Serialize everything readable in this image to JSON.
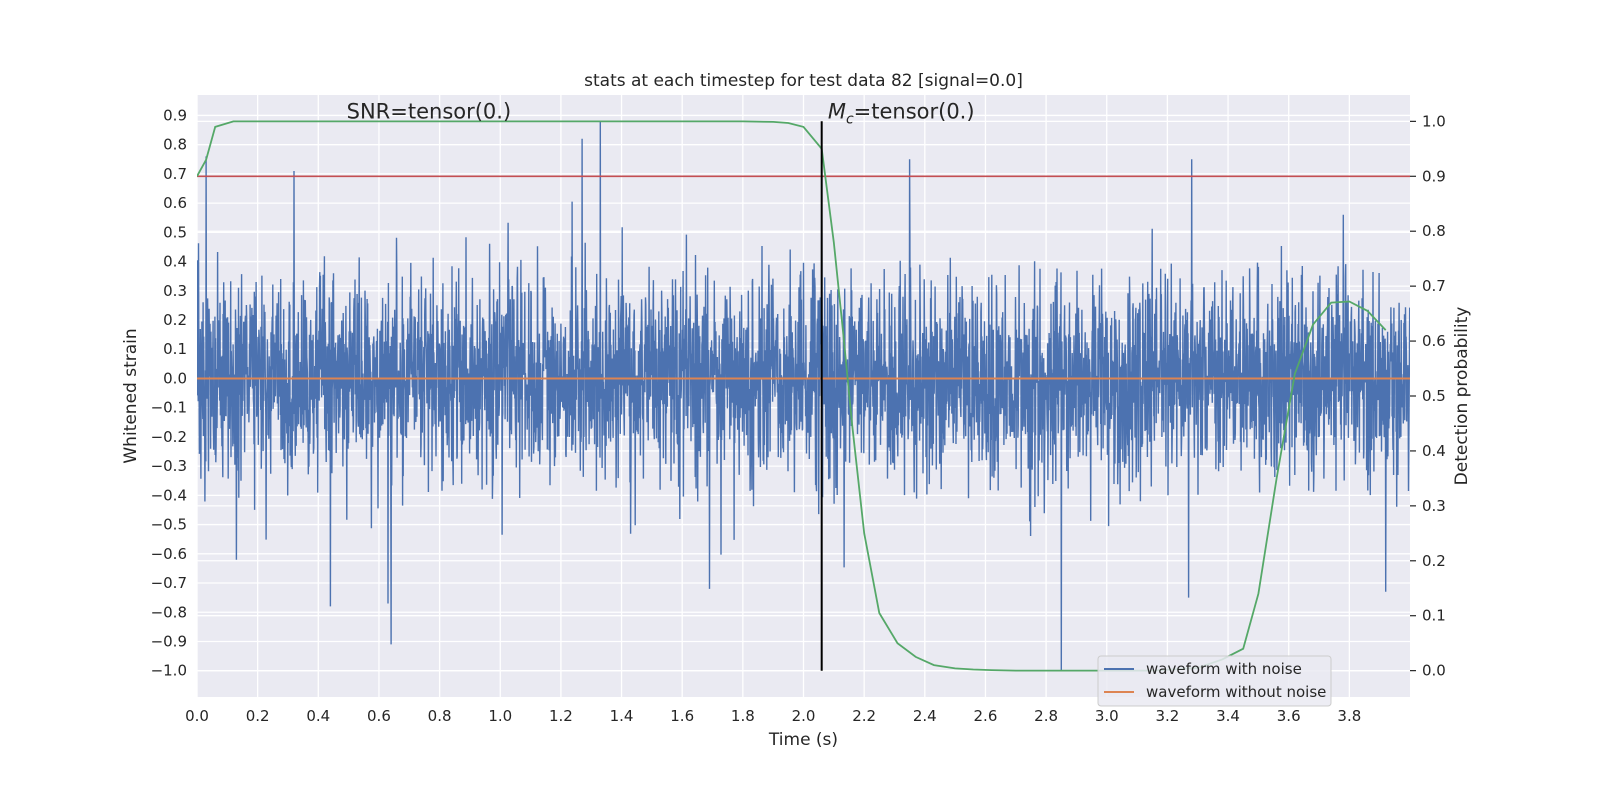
{
  "chart_data": {
    "type": "line",
    "title": "stats at each timestep for test data 82 [signal=0.0]",
    "xlabel": "Time (s)",
    "ylabel": "Whitened strain",
    "y2label": "Detection probability",
    "xlim": [
      0.0,
      4.0
    ],
    "ylim": [
      -1.09,
      0.97
    ],
    "y2lim": [
      -0.048,
      1.048
    ],
    "x_ticks": [
      "0.0",
      "0.2",
      "0.4",
      "0.6",
      "0.8",
      "1.0",
      "1.2",
      "1.4",
      "1.6",
      "1.8",
      "2.0",
      "2.2",
      "2.4",
      "2.6",
      "2.8",
      "3.0",
      "3.2",
      "3.4",
      "3.6",
      "3.8"
    ],
    "y_ticks": [
      "0.9",
      "0.8",
      "0.7",
      "0.6",
      "0.5",
      "0.4",
      "0.3",
      "0.2",
      "0.1",
      "0.0",
      "−0.1",
      "−0.2",
      "−0.3",
      "−0.4",
      "−0.5",
      "−0.6",
      "−0.7",
      "−0.8",
      "−0.9",
      "−1.0"
    ],
    "y2_ticks": [
      "1.0",
      "0.9",
      "0.8",
      "0.7",
      "0.6",
      "0.5",
      "0.4",
      "0.3",
      "0.2",
      "0.1",
      "0.0"
    ],
    "grid": true,
    "legend_position": "lower-right",
    "annotations": [
      {
        "text": "SNR=tensor(0.)",
        "x": 0.5,
        "y": 0.9
      },
      {
        "text": "=tensor(0.)",
        "math_prefix": "M",
        "math_sub": "c",
        "x": 2.1,
        "y": 0.9
      }
    ],
    "vline": {
      "x": 2.06,
      "ymin": -1.0,
      "ymax": 0.88,
      "color": "#000000"
    },
    "hline_threshold": {
      "axis": "right",
      "y": 0.9,
      "color": "#c44e52"
    },
    "series": [
      {
        "name": "waveform with noise",
        "axis": "left",
        "color": "#4c72b0",
        "description_values": "noise samples, std approx 0.17",
        "std": 0.17,
        "peaks": [
          [
            0.03,
            0.76
          ],
          [
            0.13,
            -0.62
          ],
          [
            0.32,
            0.71
          ],
          [
            0.44,
            -0.78
          ],
          [
            0.63,
            -0.77
          ],
          [
            0.64,
            -0.91
          ],
          [
            1.27,
            0.82
          ],
          [
            1.33,
            0.88
          ],
          [
            1.69,
            -0.72
          ],
          [
            2.06,
            0.71
          ],
          [
            2.35,
            0.75
          ],
          [
            2.85,
            -1.0
          ],
          [
            3.28,
            0.75
          ],
          [
            3.27,
            -0.75
          ],
          [
            3.78,
            0.56
          ],
          [
            3.92,
            -0.73
          ]
        ]
      },
      {
        "name": "waveform without noise",
        "axis": "left",
        "color": "#dd8452",
        "values_constant": 0.0
      },
      {
        "name": "",
        "axis": "right",
        "color": "#55a868",
        "x": [
          0.0,
          0.03,
          0.06,
          0.12,
          0.2,
          0.4,
          0.8,
          1.2,
          1.6,
          1.8,
          1.9,
          1.95,
          2.0,
          2.06,
          2.1,
          2.13,
          2.16,
          2.2,
          2.25,
          2.31,
          2.37,
          2.43,
          2.5,
          2.56,
          2.62,
          2.7,
          2.85,
          3.0,
          3.15,
          3.3,
          3.38,
          3.45,
          3.5,
          3.56,
          3.62,
          3.68,
          3.74,
          3.8,
          3.86,
          3.92
        ],
        "y": [
          0.9,
          0.93,
          0.99,
          1.0,
          1.0,
          1.0,
          1.0,
          1.0,
          1.0,
          1.0,
          0.999,
          0.997,
          0.99,
          0.95,
          0.78,
          0.62,
          0.45,
          0.25,
          0.105,
          0.05,
          0.025,
          0.01,
          0.004,
          0.002,
          0.001,
          0.0,
          0.0,
          0.0,
          0.0,
          0.005,
          0.02,
          0.04,
          0.14,
          0.35,
          0.54,
          0.63,
          0.67,
          0.672,
          0.655,
          0.62
        ]
      }
    ]
  }
}
